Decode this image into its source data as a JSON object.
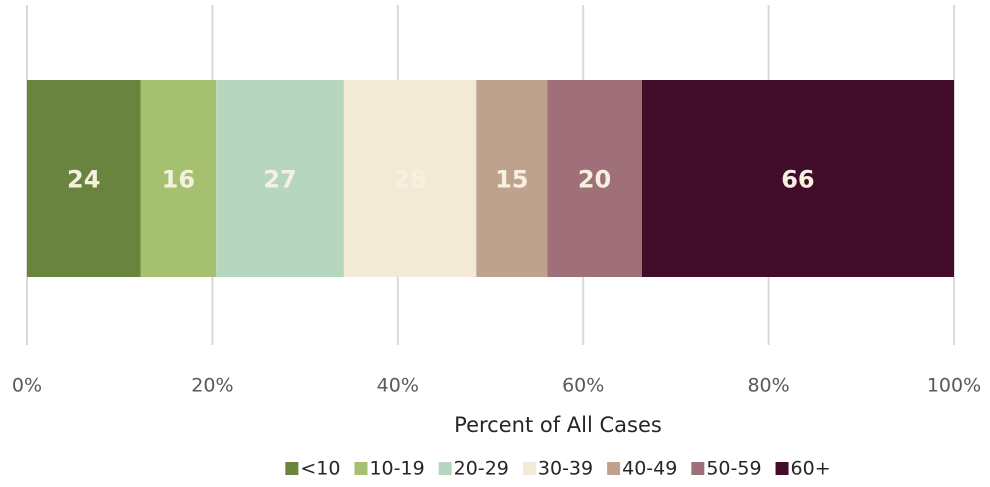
{
  "chart_data": {
    "type": "stacked_bar_percent",
    "orientation": "horizontal",
    "x_axis_label": "Percent of All Cases",
    "series": [
      {
        "name": "<10",
        "color": "#68843f",
        "values": [
          24
        ]
      },
      {
        "name": "10-19",
        "color": "#a5c170",
        "values": [
          16
        ]
      },
      {
        "name": "20-29",
        "color": "#b7d6bf",
        "values": [
          27
        ]
      },
      {
        "name": "30-39",
        "color": "#f3ead6",
        "values": [
          28
        ]
      },
      {
        "name": "40-49",
        "color": "#bfa28d",
        "values": [
          15
        ]
      },
      {
        "name": "50-59",
        "color": "#a0707a",
        "values": [
          20
        ]
      },
      {
        "name": "60+",
        "color": "#420d2b",
        "values": [
          66
        ]
      }
    ],
    "xlim": [
      0,
      100
    ],
    "xticks": [
      {
        "value": 0,
        "label": "0%"
      },
      {
        "value": 20,
        "label": "20%"
      },
      {
        "value": 40,
        "label": "40%"
      },
      {
        "value": 60,
        "label": "60%"
      },
      {
        "value": 80,
        "label": "80%"
      },
      {
        "value": 100,
        "label": "100%"
      }
    ],
    "grid": true,
    "legend": "bottom"
  }
}
